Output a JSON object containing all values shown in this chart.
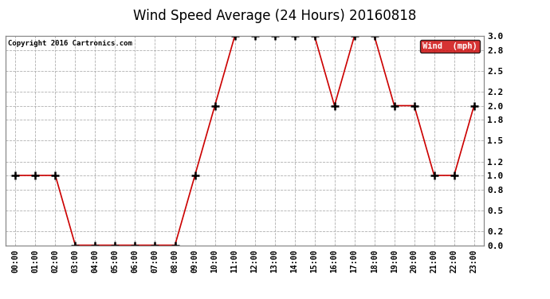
{
  "title": "Wind Speed Average (24 Hours) 20160818",
  "copyright": "Copyright 2016 Cartronics.com",
  "legend_label": "Wind  (mph)",
  "x_labels": [
    "00:00",
    "01:00",
    "02:00",
    "03:00",
    "04:00",
    "05:00",
    "06:00",
    "07:00",
    "08:00",
    "09:00",
    "10:00",
    "11:00",
    "12:00",
    "13:00",
    "14:00",
    "15:00",
    "16:00",
    "17:00",
    "18:00",
    "19:00",
    "20:00",
    "21:00",
    "22:00",
    "23:00"
  ],
  "y_values": [
    1.0,
    1.0,
    1.0,
    0.0,
    0.0,
    0.0,
    0.0,
    0.0,
    0.0,
    1.0,
    2.0,
    3.0,
    3.0,
    3.0,
    3.0,
    3.0,
    2.0,
    3.0,
    3.0,
    2.0,
    2.0,
    1.0,
    1.0,
    2.0
  ],
  "line_color": "#cc0000",
  "marker_color": "#000000",
  "bg_color": "#ffffff",
  "grid_color": "#b0b0b0",
  "ylim": [
    0.0,
    3.0
  ],
  "yticks": [
    0.0,
    0.2,
    0.5,
    0.8,
    1.0,
    1.2,
    1.5,
    1.8,
    2.0,
    2.2,
    2.5,
    2.8,
    3.0
  ],
  "title_fontsize": 12,
  "legend_bg": "#cc0000",
  "legend_text_color": "#ffffff"
}
